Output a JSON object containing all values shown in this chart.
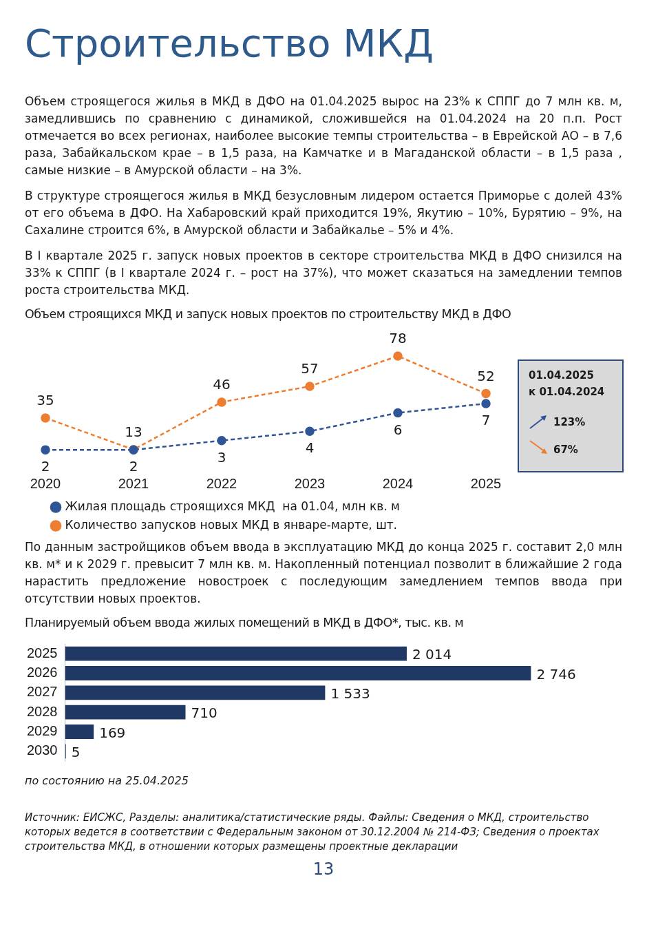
{
  "chart_data": [
    {
      "type": "other",
      "title": "Строительство МКД",
      "annotations": [
        "Объем строящегося жилья в МКД в ДФО на 01.04.2025 вырос на 23% к СППГ до 7 млн кв. м, замедлившись по сравнению с динамикой, сложившейся на 01.04.2024 на 20 п.п. Рост отмечается во всех регионах, наиболее высокие темпы строительства – в Еврейской АО – в 7,6 раза, Забайкальском крае – в 1,5 раза, на Камчатке и в Магаданской области – в 1,5 раза , самые низкие – в Амурской области – на 3%.",
        "В структуре строящегося жилья в МКД безусловным лидером остается Приморье с долей 43% от его объема в ДФО. На Хабаровский край приходится 19%, Якутию – 10%, Бурятию – 9%, на Сахалине строится 6%, в Амурской области и Забайкалье – 5% и 4%.",
        "В I квартале 2025 г. запуск новых проектов в секторе строительства МКД в ДФО снизился на 33% к СППГ (в I квартале 2024 г. – рост на 37%), что может сказаться на замедлении темпов роста строительства МКД."
      ]
    },
    {
      "type": "line",
      "title": "Объем строящихся МКД и запуск новых проектов по строительству МКД в ДФО",
      "categories": [
        "2020",
        "2021",
        "2022",
        "2023",
        "2024",
        "2025"
      ],
      "series": [
        {
          "name": "Жилая площадь строящихся МКД  на 01.04, млн кв. м",
          "color": "#2f5597",
          "values": [
            2,
            2,
            3,
            4,
            6,
            7
          ],
          "axis": "y2"
        },
        {
          "name": "Количество запусков новых МКД в январе-марте, шт.",
          "color": "#ed7d31",
          "values": [
            35,
            13,
            46,
            57,
            78,
            52
          ]
        }
      ],
      "data_labels": true,
      "legend": "bottom",
      "marker": "circle",
      "line_style": "dashed",
      "tick_labels": "x",
      "annotations": [
        "01.04.2025",
        "к 01.04.2024",
        "123%",
        "67%"
      ]
    },
    {
      "type": "other",
      "annotations": [
        "По данным застройщиков объем ввода в эксплуатацию МКД до конца 2025 г. составит 2,0 млн кв. м* и к 2029 г. превысит 7 млн кв. м. Накопленный потенциал позволит в ближайшие 2 года нарастить предложение новостроек с последующим замедлением темпов ввода при отсутствии новых проектов."
      ]
    },
    {
      "type": "bar",
      "orientation": "horizontal",
      "title": "Планируемый объем ввода жилых помещений в МКД в ДФО*, тыс. кв. м",
      "categories": [
        "2025",
        "2026",
        "2027",
        "2028",
        "2029",
        "2030"
      ],
      "values": [
        2014,
        2746,
        1533,
        710,
        169,
        5
      ],
      "color": "#1f3864",
      "value_labels": [
        "2 014",
        "2 746",
        "1 533",
        "710",
        "169",
        "5"
      ],
      "tick_labels": "y",
      "annotations": [
        "по состоянию на 25.04.2025",
        "Источник: ЕИСЖС, Разделы: аналитика/статистические ряды. Файлы: Сведения о МКД, строительство которых ведется в соответствии с Федеральным законом от 30.12.2004 № 214-ФЗ; Сведения о проектах строительства МКД, в отношении которых размещены проектные декларации",
        "13"
      ]
    }
  ]
}
